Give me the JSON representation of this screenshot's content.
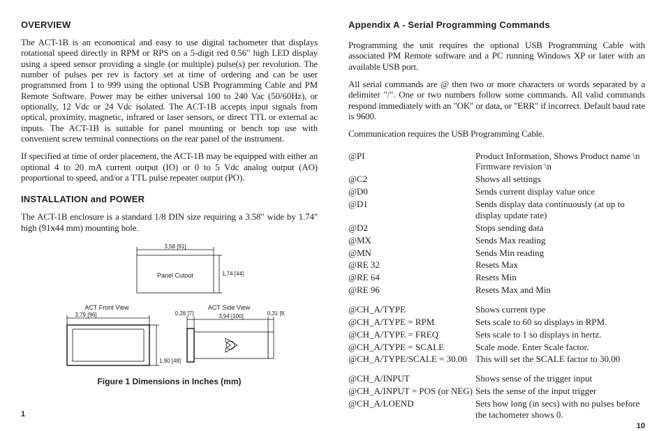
{
  "left": {
    "overview_h": "OVERVIEW",
    "overview_p1": "The ACT-1B is an economical and easy to use digital tachometer that displays rotational speed directly in RPM or RPS on a 5-digit red 0.56\" high LED display using a speed sensor providing a single (or multiple) pulse(s) per revolution. The number of pulses per rev is factory set at time of ordering and can be user programmed from 1 to 999 using the optional USB Programming Cable and PM Remote Software. Power may be either universal 100 to 240 Vac (50/60Hz), or optionally, 12 Vdc or 24 Vdc isolated. The ACT-1B accepts input signals from optical, proximity, magnetic, infrared or laser sensors, or direct TTL or external ac inputs. The ACT-1B is suitable for panel mounting or bench top use with convenient screw terminal connections on the rear panel of the instrument.",
    "overview_p2": "If specified at time of order placement, the ACT-1B may be equipped with either an optional 4 to 20 mA current output (IO) or 0 to 5 Vdc analog output (AO) proportional to speed, and/or a TTL pulse repeater output (PO).",
    "install_h": "INSTALLATION and POWER",
    "install_p": "The ACT-1B enclosure is a standard 1/8 DIN size requiring a 3.58\" wide by 1.74\" high (91x44 mm) mounting hole.",
    "fig": {
      "cutout_label": "Panel Cutout",
      "dim_top": "3,58 [91]",
      "dim_h": "1,74 [44]",
      "front_label": "ACT Front View",
      "side_label": "ACT Side View",
      "dim_front_w": "3,79 [96]",
      "dim_front_h": "1,90 [48]",
      "dim_side_a": "0,28 [7]",
      "dim_side_b": "3,94 [100]",
      "dim_side_c": "0,31 [8]",
      "caption": "Figure 1  Dimensions in Inches (mm)"
    },
    "pagenum": "1"
  },
  "right": {
    "appendix_h": "Appendix A - Serial Programming Commands",
    "app_p1": "Programming the unit requires the optional USB Programming Cable with associated PM Remote software and a PC running Windows XP or later with an available USB port.",
    "app_p2": "All serial commands are @ then two or more characters or words separated by a delimiter \"/\". One or two numbers follow some commands. All valid commands respond immediately with an \"OK\" or data, or \"ERR\" if incorrect. Default baud rate is 9600.",
    "app_p3": "Communication requires the USB Programming Cable.",
    "cmds1": [
      [
        "@PI",
        "Product Information, Shows Product name \\n Firmware revision \\n"
      ],
      [
        "@C2",
        "Shows all settings"
      ],
      [
        "@D0",
        "Sends current display value once"
      ],
      [
        "@D1",
        "Sends display data continuously (at up to display update rate)"
      ],
      [
        "@D2",
        "Stops sending data"
      ],
      [
        "@MX",
        "Sends Max reading"
      ],
      [
        "@MN",
        "Sends Min reading"
      ],
      [
        "@RE 32",
        "Resets Max"
      ],
      [
        "@RE 64",
        "Resets  Min"
      ],
      [
        "@RE 96",
        "Resets Max and Min"
      ]
    ],
    "cmds2": [
      [
        "@CH_A/TYPE",
        "Shows current type"
      ],
      [
        "@CH_A/TYPE = RPM",
        "Sets scale to 60 so displays in RPM."
      ],
      [
        "@CH_A/TYPE = FREQ",
        "Sets scale to 1 so displays in hertz."
      ],
      [
        "@CH_A/TYPE = SCALE",
        "Scale mode. Enter Scale factor."
      ],
      [
        "@CH_A/TYPE/SCALE = 30.00",
        "This will set the SCALE factor to 30.00"
      ]
    ],
    "cmds3": [
      [
        "@CH_A/INPUT",
        "Shows sense of the trigger input"
      ],
      [
        "@CH_A/INPUT = POS (or NEG)",
        "Sets the sense of the input trigger"
      ],
      [
        "@CH_A/LOEND",
        "Sets how long (in secs) with no pulses before the tachometer shows 0."
      ]
    ],
    "pagenum": "10"
  }
}
